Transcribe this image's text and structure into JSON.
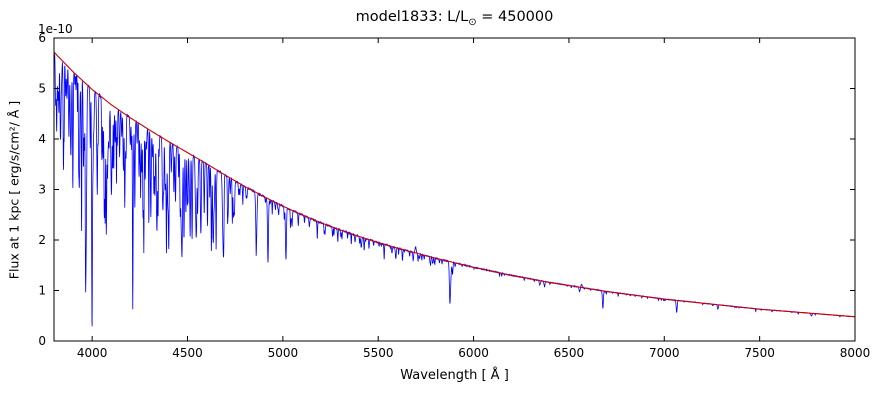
{
  "chart_data": {
    "type": "line",
    "title": {
      "prefix": "model1833: L/L",
      "sub": "⊙",
      "suffix": " = 450000"
    },
    "xlabel": "Wavelength [ Å ]",
    "ylabel": "Flux at 1 kpc [ erg/s/cm²/ Å ]",
    "y_offset_text": "1e-10",
    "x_range": [
      3800,
      8000
    ],
    "y_range": [
      0,
      6
    ],
    "x_ticks": [
      4000,
      4500,
      5000,
      5500,
      6000,
      6500,
      7000,
      7500,
      8000
    ],
    "y_ticks": [
      0,
      1,
      2,
      3,
      4,
      5,
      6
    ],
    "grid": false,
    "legend": "none",
    "series": [
      {
        "name": "spectrum",
        "color": "#0000ff"
      },
      {
        "name": "continuum-fit",
        "color": "#cc0000"
      }
    ],
    "continuum": {
      "x": [
        3800,
        3900,
        4000,
        4100,
        4200,
        4300,
        4400,
        4500,
        4600,
        4700,
        4800,
        4900,
        5000,
        5100,
        5200,
        5300,
        5400,
        5500,
        5600,
        5700,
        5800,
        5900,
        6000,
        6100,
        6200,
        6300,
        6400,
        6500,
        6600,
        6700,
        6800,
        6900,
        7000,
        7100,
        7200,
        7300,
        7400,
        7500,
        7600,
        7700,
        7800,
        7900,
        8000
      ],
      "y": [
        5.72,
        5.33,
        4.98,
        4.68,
        4.42,
        4.18,
        3.95,
        3.73,
        3.51,
        3.28,
        3.06,
        2.86,
        2.67,
        2.5,
        2.34,
        2.2,
        2.07,
        1.95,
        1.84,
        1.74,
        1.64,
        1.55,
        1.46,
        1.38,
        1.3,
        1.23,
        1.16,
        1.1,
        1.04,
        0.98,
        0.93,
        0.88,
        0.83,
        0.79,
        0.75,
        0.71,
        0.67,
        0.63,
        0.6,
        0.57,
        0.54,
        0.51,
        0.48
      ]
    },
    "absorption_lines": [
      {
        "wl": 3820,
        "depth": 0.15,
        "width": 2
      },
      {
        "wl": 3835,
        "depth": 0.22,
        "width": 2.5
      },
      {
        "wl": 3868,
        "depth": 0.12,
        "width": 2
      },
      {
        "wl": 3889,
        "depth": 0.25,
        "width": 2.5
      },
      {
        "wl": 3933,
        "depth": 0.15,
        "width": 2
      },
      {
        "wl": 3964,
        "depth": 0.14,
        "width": 2
      },
      {
        "wl": 3970,
        "depth": 0.32,
        "width": 2.5
      },
      {
        "wl": 4009,
        "depth": 0.15,
        "width": 2
      },
      {
        "wl": 4026,
        "depth": 0.3,
        "width": 2.5
      },
      {
        "wl": 4069,
        "depth": 0.22,
        "width": 2
      },
      {
        "wl": 4089,
        "depth": 0.18,
        "width": 2
      },
      {
        "wl": 4101,
        "depth": 0.38,
        "width": 3
      },
      {
        "wl": 4121,
        "depth": 0.15,
        "width": 2
      },
      {
        "wl": 4144,
        "depth": 0.2,
        "width": 2
      },
      {
        "wl": 4200,
        "depth": 0.12,
        "width": 2
      },
      {
        "wl": 4267,
        "depth": 0.15,
        "width": 2
      },
      {
        "wl": 4317,
        "depth": 0.12,
        "width": 2
      },
      {
        "wl": 4340,
        "depth": 0.42,
        "width": 3
      },
      {
        "wl": 4387,
        "depth": 0.22,
        "width": 2.5
      },
      {
        "wl": 4415,
        "depth": 0.15,
        "width": 2
      },
      {
        "wl": 4471,
        "depth": 0.55,
        "width": 2.8
      },
      {
        "wl": 4481,
        "depth": 0.2,
        "width": 2
      },
      {
        "wl": 4541,
        "depth": 0.14,
        "width": 2
      },
      {
        "wl": 4553,
        "depth": 0.3,
        "width": 2.2
      },
      {
        "wl": 4568,
        "depth": 0.18,
        "width": 2
      },
      {
        "wl": 4640,
        "depth": 0.22,
        "width": 2.5
      },
      {
        "wl": 4686,
        "depth": 0.35,
        "width": 2.5
      },
      {
        "wl": 4713,
        "depth": 0.22,
        "width": 2
      },
      {
        "wl": 4861,
        "depth": 0.35,
        "width": 3
      },
      {
        "wl": 4922,
        "depth": 0.45,
        "width": 2.5
      },
      {
        "wl": 5016,
        "depth": 0.38,
        "width": 2.5
      },
      {
        "wl": 5048,
        "depth": 0.12,
        "width": 2
      },
      {
        "wl": 5411,
        "depth": 0.1,
        "width": 2.5
      },
      {
        "wl": 5592,
        "depth": 0.08,
        "width": 2.5
      },
      {
        "wl": 5876,
        "depth": 0.52,
        "width": 2.8
      },
      {
        "wl": 5890,
        "depth": 0.14,
        "width": 2
      },
      {
        "wl": 6347,
        "depth": 0.07,
        "width": 2.5
      },
      {
        "wl": 6371,
        "depth": 0.06,
        "width": 2.5
      },
      {
        "wl": 6556,
        "depth": 0.08,
        "width": 3
      },
      {
        "wl": 6678,
        "depth": 0.35,
        "width": 2.5
      },
      {
        "wl": 7065,
        "depth": 0.3,
        "width": 2.5
      },
      {
        "wl": 7281,
        "depth": 0.12,
        "width": 2.5
      },
      {
        "wl": 7772,
        "depth": 0.1,
        "width": 3
      }
    ],
    "emission_lines": [
      {
        "wl": 5696,
        "height": 0.07,
        "width": 3
      },
      {
        "wl": 6566,
        "height": 0.06,
        "width": 3
      }
    ],
    "fine_line_bands": [
      {
        "range": [
          3805,
          4750
        ],
        "count": 150,
        "depth_min": 0.04,
        "depth_max": 0.34,
        "width_min": 1.0,
        "width_max": 2.2
      },
      {
        "range": [
          4750,
          5900
        ],
        "count": 70,
        "depth_min": 0.02,
        "depth_max": 0.1,
        "width_min": 1.0,
        "width_max": 2.0
      },
      {
        "range": [
          5900,
          8000
        ],
        "count": 45,
        "depth_min": 0.015,
        "depth_max": 0.05,
        "width_min": 1.0,
        "width_max": 2.0
      }
    ],
    "noise_seed": 42,
    "noise_amplitude": 0.012
  }
}
